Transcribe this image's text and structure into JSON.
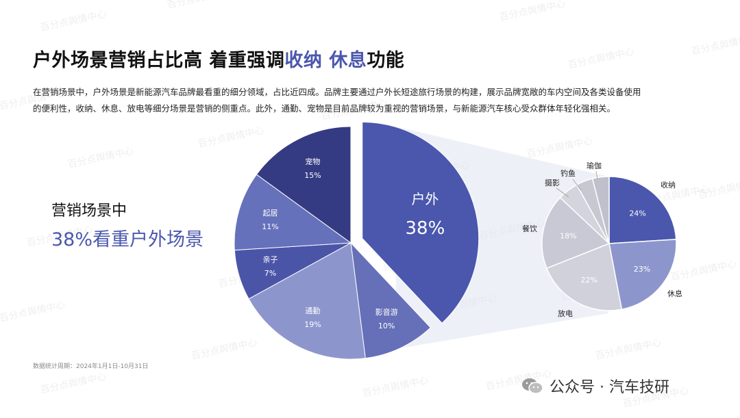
{
  "header": {
    "title_part1": "户外场景营销占比高  着重强调",
    "title_hl1": "收纳",
    "title_space": "  ",
    "title_hl2": "休息",
    "title_part2": "功能"
  },
  "description": {
    "line1": "在营销场景中，户外场景是新能源汽车品牌最看重的细分领域，占比近四成。品牌主要通过户外长短途旅行场景的构建，展示品牌宽敞的车内空间及各类设备使用",
    "line2": "的便利性，收纳、休息、放电等细分场景是营销的侧重点。此外，通勤、宠物是目前品牌较为重视的营销场景，与新能源汽车核心受众群体年轻化强相关。"
  },
  "sidebar": {
    "line1": "营销场景中",
    "line2": "38%看重户外场景"
  },
  "footnote": "数据统计周期：2024年1月1日-10月31日",
  "brand": {
    "text": "公众号 · 汽车技研",
    "icon": "wechat-icon"
  },
  "watermark": "百分点舆情中心",
  "chart_data": [
    {
      "type": "pie",
      "title": "",
      "slices": [
        {
          "label": "户外",
          "value": 38,
          "display": "38%",
          "color": "#4a57ad",
          "exploded": true
        },
        {
          "label": "影音游",
          "value": 10,
          "display": "10%",
          "color": "#6670b8"
        },
        {
          "label": "通勤",
          "value": 19,
          "display": "19%",
          "color": "#8d96cc"
        },
        {
          "label": "亲子",
          "value": 7,
          "display": "7%",
          "color": "#4b55a8"
        },
        {
          "label": "起居",
          "value": 11,
          "display": "11%",
          "color": "#6671bb"
        },
        {
          "label": "宠物",
          "value": 15,
          "display": "15%",
          "color": "#353b82"
        }
      ]
    },
    {
      "type": "pie",
      "title": "",
      "parent": "户外",
      "slices": [
        {
          "label": "收纳",
          "value": 24,
          "display": "24%",
          "color": "#4a57ad"
        },
        {
          "label": "休息",
          "value": 23,
          "display": "23%",
          "color": "#8d96cc"
        },
        {
          "label": "放电",
          "value": 22,
          "display": "22%",
          "color": "#d0d1da"
        },
        {
          "label": "餐饮",
          "value": 18,
          "display": "18%",
          "color": "#c8c9d4"
        },
        {
          "label": "摄影",
          "value": 5,
          "display": "",
          "color": "#d3d4dc"
        },
        {
          "label": "钓鱼",
          "value": 4,
          "display": "",
          "color": "#c7c8d2"
        },
        {
          "label": "瑜伽",
          "value": 4,
          "display": "",
          "color": "#bfc0cb"
        }
      ]
    }
  ]
}
